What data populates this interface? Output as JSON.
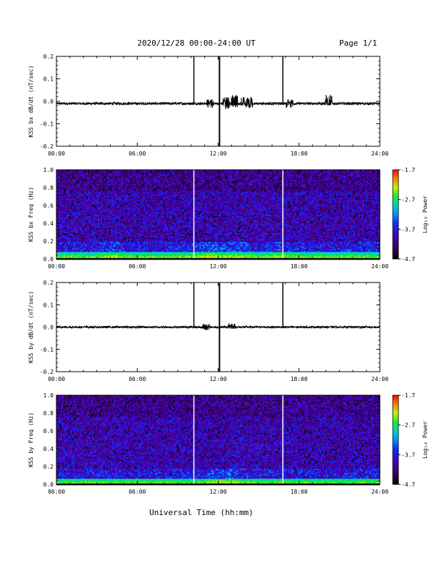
{
  "header": {
    "title": "2020/12/28  00:00-24:00 UT",
    "page": "Page 1/1"
  },
  "colorbar": {
    "label": "Log₁₀ Power",
    "ticks": [
      "-1.7",
      "-2.7",
      "-3.7",
      "-4.7"
    ],
    "range": [
      -4.7,
      -1.7
    ],
    "colormap": "rainbow (black-purple-blue-cyan-green-yellow-red)"
  },
  "x_axis": {
    "label": "Universal Time (hh:mm)",
    "ticks": [
      "00:00",
      "06:00",
      "12:00",
      "18:00",
      "24:00"
    ],
    "range_hours": [
      0,
      24
    ]
  },
  "chart_data": [
    {
      "type": "line",
      "ylabel": "KSS bx dB/dt (nT/sec)",
      "ylim": [
        -0.2,
        0.2
      ],
      "yticks": [
        "0.2",
        "0.1",
        "0.0",
        "-0.1",
        "-0.2"
      ],
      "baseline": -0.01,
      "noise_amplitude": 0.006,
      "spikes": [
        {
          "hour": 10.2,
          "low": -0.01,
          "high": 0.2
        },
        {
          "hour": 12.1,
          "low": -0.2,
          "high": 0.2
        },
        {
          "hour": 16.8,
          "low": -0.01,
          "high": 0.2
        }
      ],
      "bursts": [
        {
          "hour": 11.4,
          "low": -0.03,
          "high": 0.01
        },
        {
          "hour": 12.6,
          "low": -0.04,
          "high": 0.02
        },
        {
          "hour": 13.2,
          "low": -0.03,
          "high": 0.03
        },
        {
          "hour": 13.9,
          "low": -0.02,
          "high": 0.02
        },
        {
          "hour": 14.3,
          "low": -0.03,
          "high": 0.02
        },
        {
          "hour": 17.3,
          "low": -0.03,
          "high": 0.01
        },
        {
          "hour": 20.2,
          "low": -0.02,
          "high": 0.03
        }
      ]
    },
    {
      "type": "heatmap",
      "ylabel": "KSS bx Freq (Hz)",
      "ylim": [
        0.0,
        1.0
      ],
      "yticks": [
        "1.0",
        "0.8",
        "0.6",
        "0.4",
        "0.2",
        "0.0"
      ],
      "gap_hours": [
        10.2,
        16.8
      ],
      "low_freq_band_top_hz": 0.08,
      "activity_hours": [
        4.1,
        10.8,
        12.0,
        13.5,
        16.5
      ]
    },
    {
      "type": "line",
      "ylabel": "KSS by dB/dt (nT/sec)",
      "ylim": [
        -0.2,
        0.2
      ],
      "yticks": [
        "0.2",
        "0.1",
        "0.0",
        "-0.1",
        "-0.2"
      ],
      "baseline": 0.0,
      "noise_amplitude": 0.005,
      "spikes": [
        {
          "hour": 10.2,
          "low": 0.0,
          "high": 0.2
        },
        {
          "hour": 12.1,
          "low": -0.2,
          "high": 0.2
        },
        {
          "hour": 16.8,
          "low": 0.0,
          "high": 0.2
        }
      ],
      "bursts": [
        {
          "hour": 11.1,
          "low": -0.015,
          "high": 0.015
        },
        {
          "hour": 13.0,
          "low": -0.01,
          "high": 0.015
        }
      ]
    },
    {
      "type": "heatmap",
      "ylabel": "KSS by Freq (Hz)",
      "ylim": [
        0.0,
        1.0
      ],
      "yticks": [
        "1.0",
        "0.8",
        "0.6",
        "0.4",
        "0.2",
        "0.0"
      ],
      "gap_hours": [
        10.2,
        16.8
      ],
      "low_freq_band_top_hz": 0.07,
      "activity_hours": [
        12.0,
        13.0
      ]
    }
  ]
}
